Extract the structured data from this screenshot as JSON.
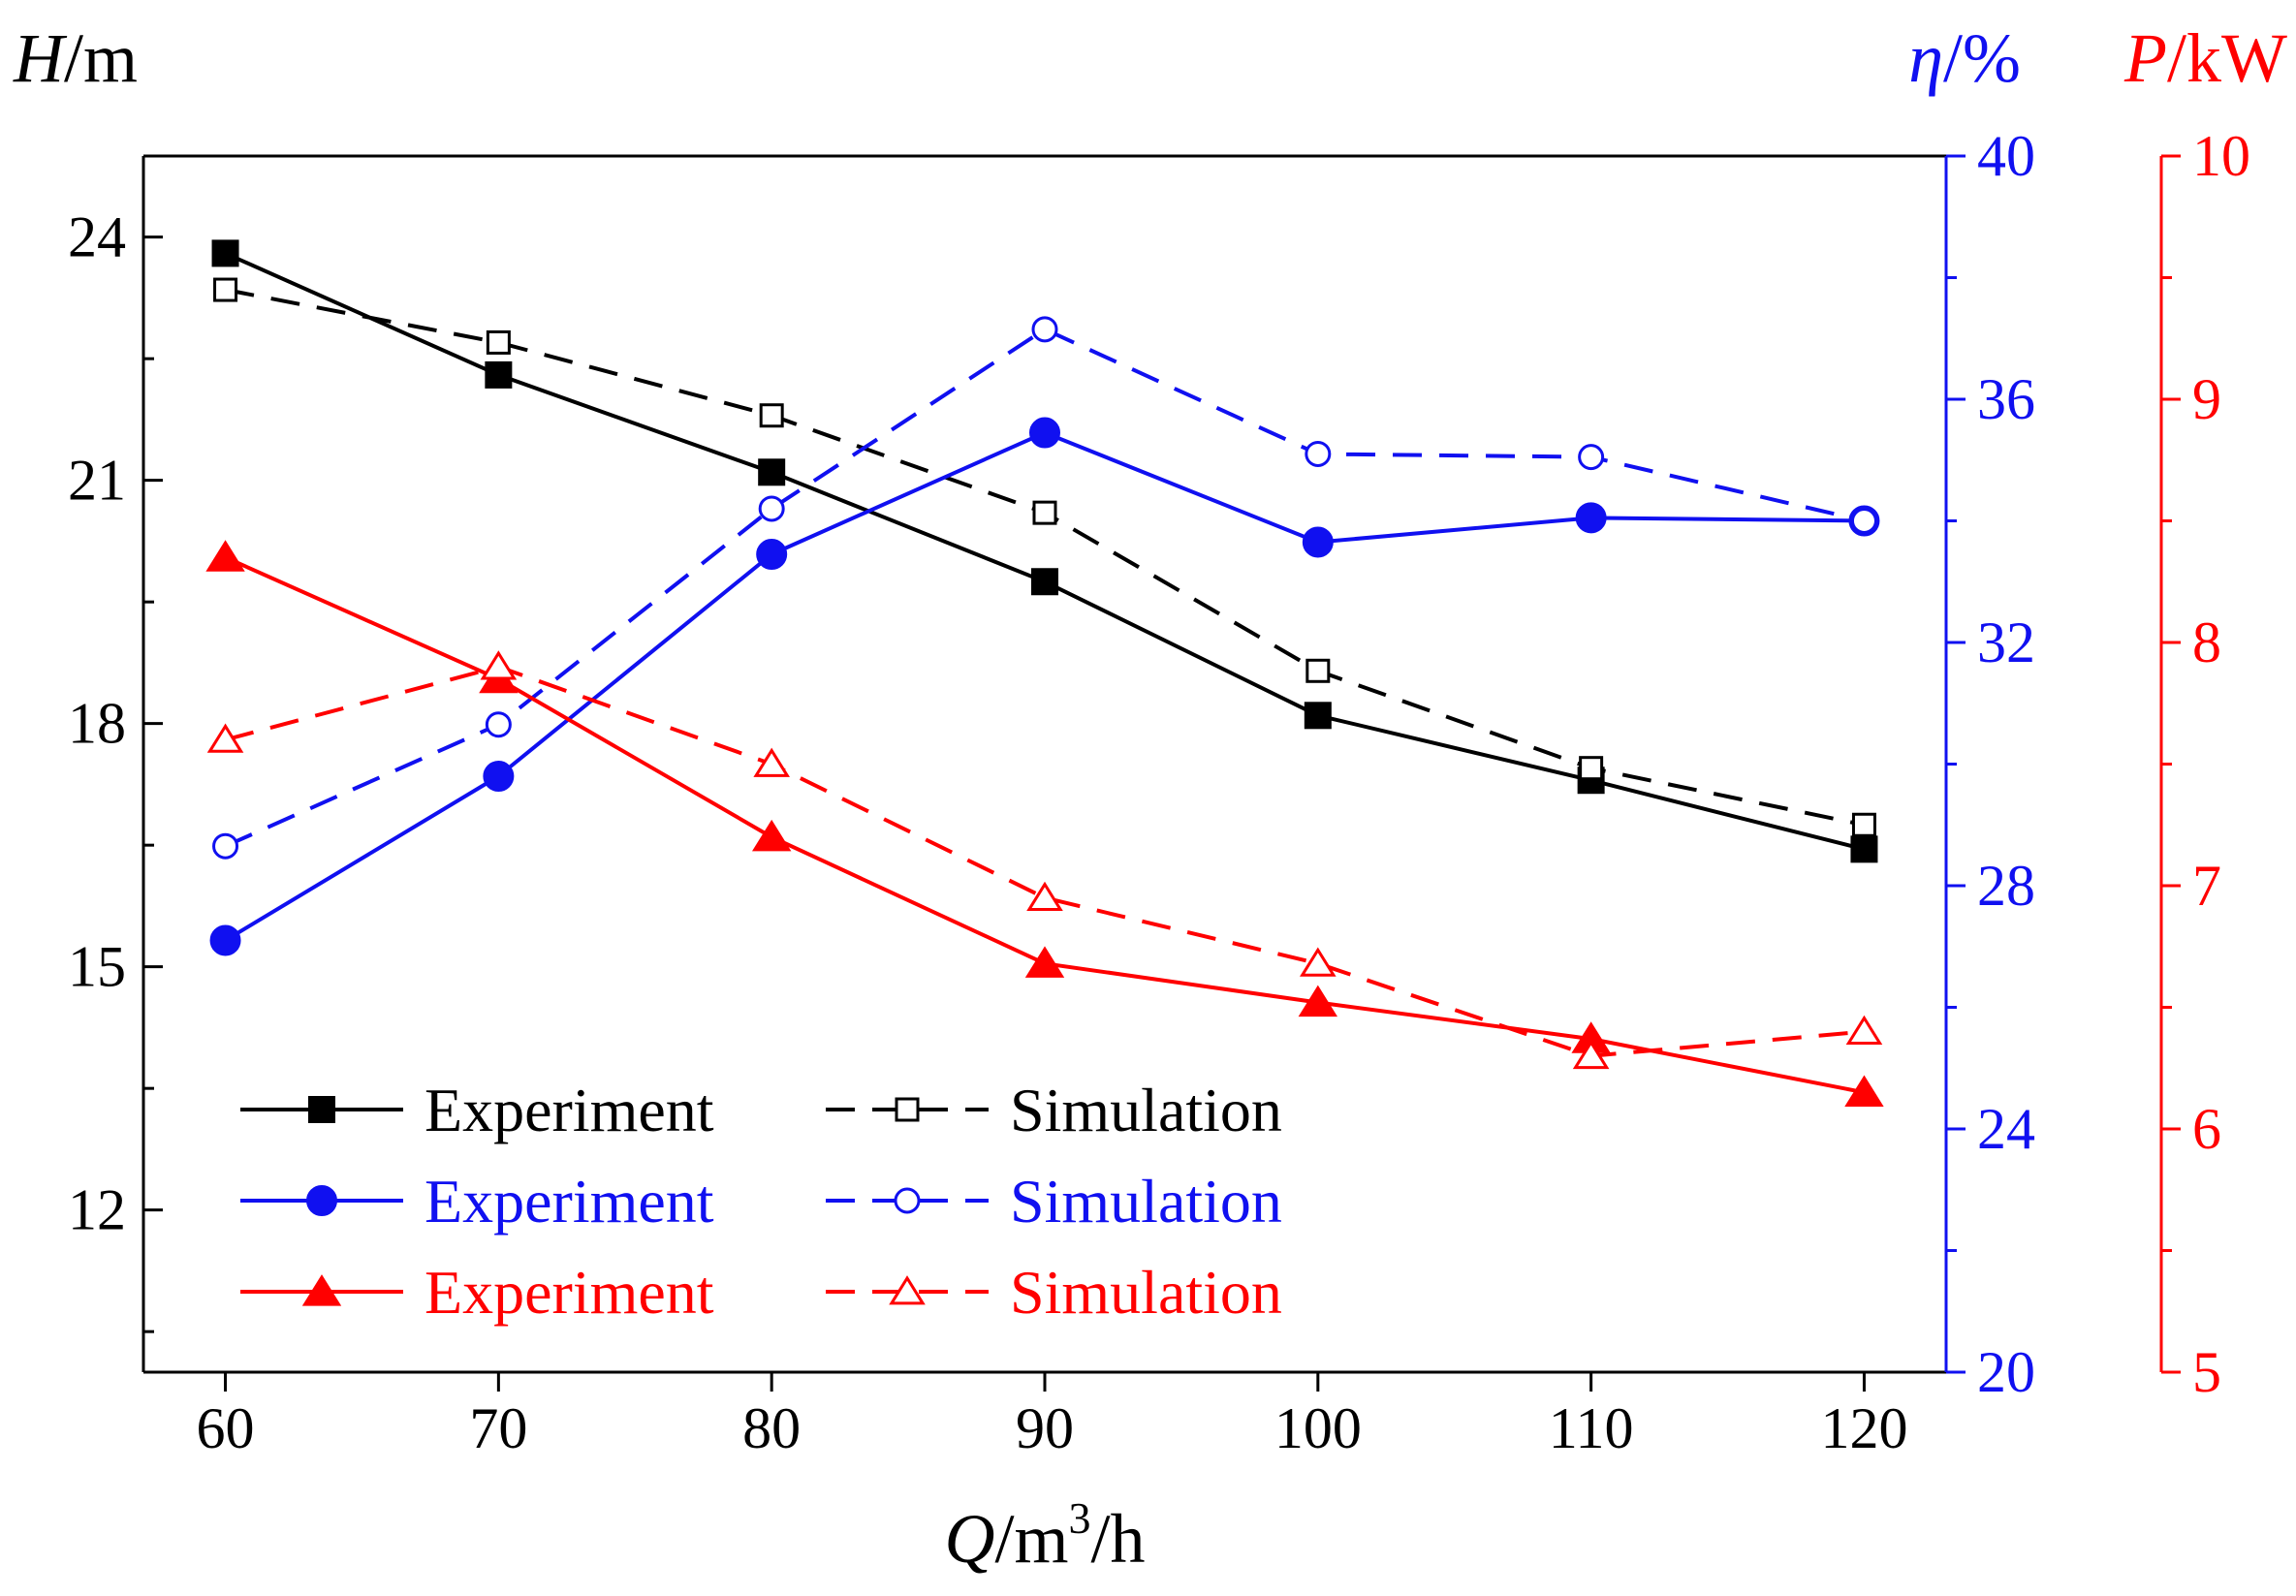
{
  "chart_data": {
    "type": "line",
    "x": [
      60,
      70,
      80,
      90,
      100,
      110,
      120
    ],
    "xlabel": {
      "main": "Q",
      "unit_a": "/m",
      "sup": "3",
      "unit_b": "/h"
    },
    "xlim": [
      57,
      123
    ],
    "xticks": [
      60,
      70,
      80,
      90,
      100,
      110,
      120
    ],
    "axes": {
      "head": {
        "var": "H",
        "unit": "/m",
        "color": "#000000",
        "ylim": [
          10,
          25
        ],
        "ticks": [
          12,
          15,
          18,
          21,
          24
        ],
        "minor": [
          10.5,
          13.5,
          16.5,
          19.5,
          22.5
        ]
      },
      "eff": {
        "var": "η",
        "unit": "/%",
        "color": "#1010f0",
        "ylim": [
          20,
          40
        ],
        "ticks": [
          20,
          24,
          28,
          32,
          36,
          40
        ],
        "minor": [
          22,
          26,
          30,
          34,
          38
        ]
      },
      "power": {
        "var": "P",
        "unit": "/kW",
        "color": "#ff0000",
        "ylim": [
          5,
          10
        ],
        "ticks": [
          5,
          6,
          7,
          8,
          9,
          10
        ],
        "minor": [
          5.5,
          6.5,
          7.5,
          8.5,
          9.5
        ]
      }
    },
    "series": [
      {
        "name": "Experiment",
        "axis": "head",
        "style": "solid",
        "marker": "square-filled",
        "values": [
          23.8,
          22.3,
          21.1,
          19.75,
          18.1,
          17.3,
          16.45
        ]
      },
      {
        "name": "Simulation",
        "axis": "head",
        "style": "dashed",
        "marker": "square-open",
        "values": [
          23.35,
          22.7,
          21.8,
          20.6,
          18.65,
          17.45,
          16.75
        ]
      },
      {
        "name": "Experiment",
        "axis": "eff",
        "style": "solid",
        "marker": "circle-filled",
        "values": [
          27.1,
          29.8,
          33.45,
          35.45,
          33.65,
          34.05,
          34.0
        ]
      },
      {
        "name": "Simulation",
        "axis": "eff",
        "style": "dashed",
        "marker": "circle-open",
        "values": [
          28.65,
          30.65,
          34.2,
          37.15,
          35.1,
          35.05,
          34.0
        ]
      },
      {
        "name": "Experiment",
        "axis": "power",
        "style": "solid",
        "marker": "triangle-filled",
        "values": [
          8.35,
          7.85,
          7.2,
          6.68,
          6.52,
          6.37,
          6.15
        ]
      },
      {
        "name": "Simulation",
        "axis": "power",
        "style": "dashed",
        "marker": "triangle-open",
        "values": [
          7.6,
          7.9,
          7.5,
          6.95,
          6.68,
          6.3,
          6.4
        ]
      }
    ],
    "legend": {
      "placement": "bottom-left",
      "rows": [
        {
          "color": "#000000",
          "exp_label": "Experiment",
          "sim_label": "Simulation",
          "exp_marker": "square-filled",
          "sim_marker": "square-open"
        },
        {
          "color": "#1010f0",
          "exp_label": "Experiment",
          "sim_label": "Simulation",
          "exp_marker": "circle-filled",
          "sim_marker": "circle-open"
        },
        {
          "color": "#ff0000",
          "exp_label": "Experiment",
          "sim_label": "Simulation",
          "exp_marker": "triangle-filled",
          "sim_marker": "triangle-open"
        }
      ]
    }
  }
}
